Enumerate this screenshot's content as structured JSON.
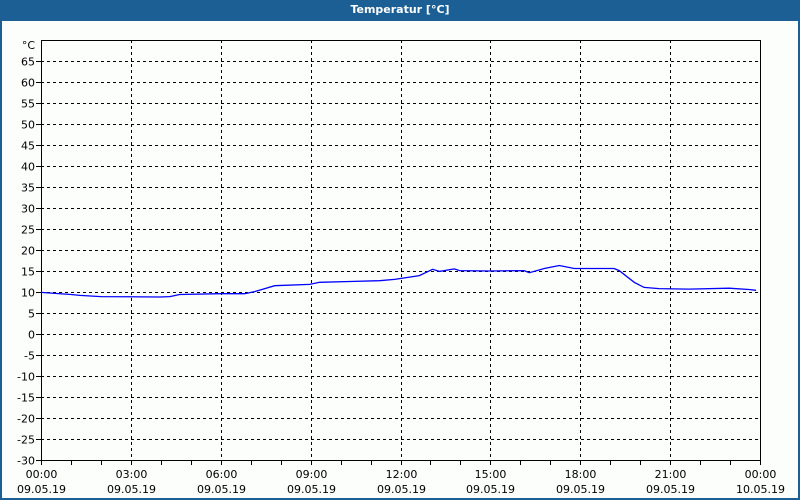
{
  "window": {
    "title": "Temperatur [°C]"
  },
  "colors": {
    "titlebar": "#1c5f95",
    "line": "#0000ff",
    "background": "#fcfefc"
  },
  "chart_data": {
    "type": "line",
    "title": "Temperatur [°C]",
    "ylabel": "°C",
    "ylim": [
      -30,
      65
    ],
    "yticks": [
      65,
      60,
      55,
      50,
      45,
      40,
      35,
      30,
      25,
      20,
      15,
      10,
      5,
      0,
      -5,
      -10,
      -15,
      -20,
      -25,
      -30
    ],
    "xlim_hours": [
      0,
      24
    ],
    "xticks": [
      {
        "time": "00:00",
        "date": "09.05.19"
      },
      {
        "time": "03:00",
        "date": "09.05.19"
      },
      {
        "time": "06:00",
        "date": "09.05.19"
      },
      {
        "time": "09:00",
        "date": "09.05.19"
      },
      {
        "time": "12:00",
        "date": "09.05.19"
      },
      {
        "time": "15:00",
        "date": "09.05.19"
      },
      {
        "time": "18:00",
        "date": "09.05.19"
      },
      {
        "time": "21:00",
        "date": "09.05.19"
      },
      {
        "time": "00:00",
        "date": "10.05.19"
      }
    ],
    "grid": true,
    "series": [
      {
        "x_hours": [
          0,
          1,
          1.3,
          2,
          3.97,
          4.3,
          4.63,
          5.97,
          6.8,
          7.13,
          7.47,
          7.8,
          8.97,
          9.3,
          10.3,
          11.3,
          11.8,
          11.97,
          12.63,
          13.07,
          13.3,
          13.8,
          13.97,
          14.97,
          16.13,
          16.3,
          16.8,
          17.3,
          17.8,
          19.13,
          19.3,
          19.8,
          20.13,
          20.63,
          21.63,
          22.97,
          23.63,
          23.87
        ],
        "y": [
          9.9,
          9.4,
          9.2,
          8.9,
          8.8,
          8.9,
          9.4,
          9.6,
          9.6,
          10.1,
          10.8,
          11.5,
          11.8,
          12.3,
          12.5,
          12.7,
          13.0,
          13.2,
          13.9,
          15.4,
          14.9,
          15.5,
          15.1,
          15.0,
          15.1,
          14.6,
          15.6,
          16.3,
          15.6,
          15.6,
          15.1,
          12.3,
          11.1,
          10.8,
          10.7,
          10.9,
          10.6,
          10.4
        ]
      }
    ]
  }
}
